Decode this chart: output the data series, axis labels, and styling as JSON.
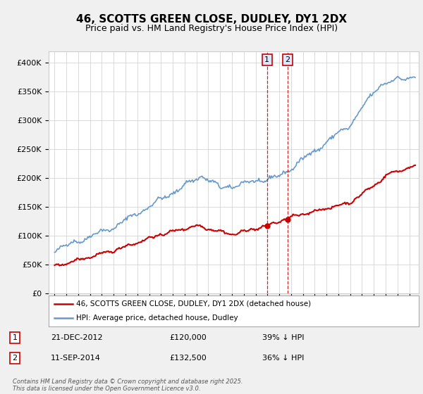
{
  "title": "46, SCOTTS GREEN CLOSE, DUDLEY, DY1 2DX",
  "subtitle": "Price paid vs. HM Land Registry's House Price Index (HPI)",
  "background_color": "#f0f0f0",
  "plot_bg_color": "#ffffff",
  "ylim": [
    0,
    420000
  ],
  "yticks": [
    0,
    50000,
    100000,
    150000,
    200000,
    250000,
    300000,
    350000,
    400000
  ],
  "ytick_labels": [
    "£0",
    "£50K",
    "£100K",
    "£150K",
    "£200K",
    "£250K",
    "£300K",
    "£350K",
    "£400K"
  ],
  "legend_label_red": "46, SCOTTS GREEN CLOSE, DUDLEY, DY1 2DX (detached house)",
  "legend_label_blue": "HPI: Average price, detached house, Dudley",
  "transaction1_date": "21-DEC-2012",
  "transaction1_price": "£120,000",
  "transaction1_note": "39% ↓ HPI",
  "transaction2_date": "11-SEP-2014",
  "transaction2_price": "£132,500",
  "transaction2_note": "36% ↓ HPI",
  "footer": "Contains HM Land Registry data © Crown copyright and database right 2025.\nThis data is licensed under the Open Government Licence v3.0.",
  "red_color": "#cc0000",
  "blue_color": "#6699cc",
  "vline_color": "#cc0000",
  "marker_color": "#cc0000",
  "box_color": "#cc0000",
  "box_fill": "#dde8ff",
  "t1_year_float": 2012.97,
  "t2_year_float": 2014.69
}
